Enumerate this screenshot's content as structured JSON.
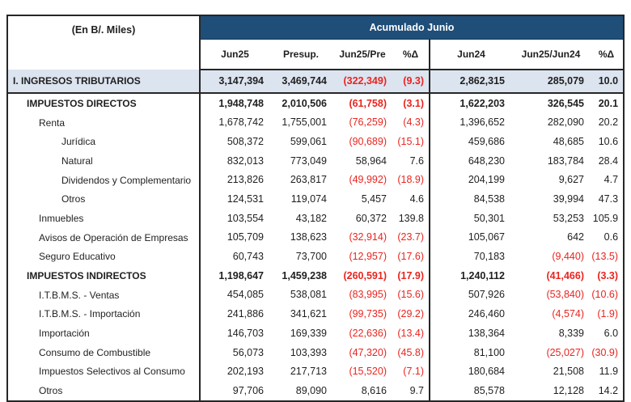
{
  "colors": {
    "band_background": "#1f4e79",
    "band_text": "#ffffff",
    "highlight_row_background": "#dce4f0",
    "negative_value_text": "#e8251f",
    "body_text": "#1f1f1f",
    "border": "#262626"
  },
  "chart_data": {
    "type": "table",
    "unit_label": "(En B/. Miles)",
    "group_header": "Acumulado Junio",
    "columns": [
      "Jun25",
      "Presup.",
      "Jun25/Pre",
      "%Δ",
      "Jun24",
      "Jun25/Jun24",
      "%Δ"
    ],
    "rows": [
      {
        "label": "I. INGRESOS TRIBUTARIOS",
        "indent": 0,
        "bold": true,
        "highlight": true,
        "values": [
          "3,147,394",
          "3,469,744",
          "(322,349)",
          "(9.3)",
          "2,862,315",
          "285,079",
          "10.0"
        ]
      },
      {
        "label": "IMPUESTOS DIRECTOS",
        "indent": 1,
        "bold": true,
        "highlight": false,
        "values": [
          "1,948,748",
          "2,010,506",
          "(61,758)",
          "(3.1)",
          "1,622,203",
          "326,545",
          "20.1"
        ]
      },
      {
        "label": "Renta",
        "indent": 2,
        "bold": false,
        "highlight": false,
        "values": [
          "1,678,742",
          "1,755,001",
          "(76,259)",
          "(4.3)",
          "1,396,652",
          "282,090",
          "20.2"
        ]
      },
      {
        "label": "Jurídica",
        "indent": 3,
        "bold": false,
        "highlight": false,
        "values": [
          "508,372",
          "599,061",
          "(90,689)",
          "(15.1)",
          "459,686",
          "48,685",
          "10.6"
        ]
      },
      {
        "label": "Natural",
        "indent": 3,
        "bold": false,
        "highlight": false,
        "values": [
          "832,013",
          "773,049",
          "58,964",
          "7.6",
          "648,230",
          "183,784",
          "28.4"
        ]
      },
      {
        "label": "Dividendos y Complementario",
        "indent": 3,
        "bold": false,
        "highlight": false,
        "values": [
          "213,826",
          "263,817",
          "(49,992)",
          "(18.9)",
          "204,199",
          "9,627",
          "4.7"
        ]
      },
      {
        "label": "Otros",
        "indent": 3,
        "bold": false,
        "highlight": false,
        "values": [
          "124,531",
          "119,074",
          "5,457",
          "4.6",
          "84,538",
          "39,994",
          "47.3"
        ]
      },
      {
        "label": "Inmuebles",
        "indent": 2,
        "bold": false,
        "highlight": false,
        "values": [
          "103,554",
          "43,182",
          "60,372",
          "139.8",
          "50,301",
          "53,253",
          "105.9"
        ]
      },
      {
        "label": "Avisos de Operación de Empresas",
        "indent": 2,
        "bold": false,
        "highlight": false,
        "values": [
          "105,709",
          "138,623",
          "(32,914)",
          "(23.7)",
          "105,067",
          "642",
          "0.6"
        ]
      },
      {
        "label": "Seguro Educativo",
        "indent": 2,
        "bold": false,
        "highlight": false,
        "values": [
          "60,743",
          "73,700",
          "(12,957)",
          "(17.6)",
          "70,183",
          "(9,440)",
          "(13.5)"
        ]
      },
      {
        "label": "IMPUESTOS INDIRECTOS",
        "indent": 1,
        "bold": true,
        "highlight": false,
        "values": [
          "1,198,647",
          "1,459,238",
          "(260,591)",
          "(17.9)",
          "1,240,112",
          "(41,466)",
          "(3.3)"
        ]
      },
      {
        "label": "I.T.B.M.S. - Ventas",
        "indent": 2,
        "bold": false,
        "highlight": false,
        "values": [
          "454,085",
          "538,081",
          "(83,995)",
          "(15.6)",
          "507,926",
          "(53,840)",
          "(10.6)"
        ]
      },
      {
        "label": "I.T.B.M.S. - Importación",
        "indent": 2,
        "bold": false,
        "highlight": false,
        "values": [
          "241,886",
          "341,621",
          "(99,735)",
          "(29.2)",
          "246,460",
          "(4,574)",
          "(1.9)"
        ]
      },
      {
        "label": "Importación",
        "indent": 2,
        "bold": false,
        "highlight": false,
        "values": [
          "146,703",
          "169,339",
          "(22,636)",
          "(13.4)",
          "138,364",
          "8,339",
          "6.0"
        ]
      },
      {
        "label": "Consumo de Combustible",
        "indent": 2,
        "bold": false,
        "highlight": false,
        "values": [
          "56,073",
          "103,393",
          "(47,320)",
          "(45.8)",
          "81,100",
          "(25,027)",
          "(30.9)"
        ]
      },
      {
        "label": "Impuestos Selectivos al Consumo",
        "indent": 2,
        "bold": false,
        "highlight": false,
        "values": [
          "202,193",
          "217,713",
          "(15,520)",
          "(7.1)",
          "180,684",
          "21,508",
          "11.9"
        ]
      },
      {
        "label": "Otros",
        "indent": 2,
        "bold": false,
        "highlight": false,
        "values": [
          "97,706",
          "89,090",
          "8,616",
          "9.7",
          "85,578",
          "12,128",
          "14.2"
        ]
      }
    ]
  }
}
